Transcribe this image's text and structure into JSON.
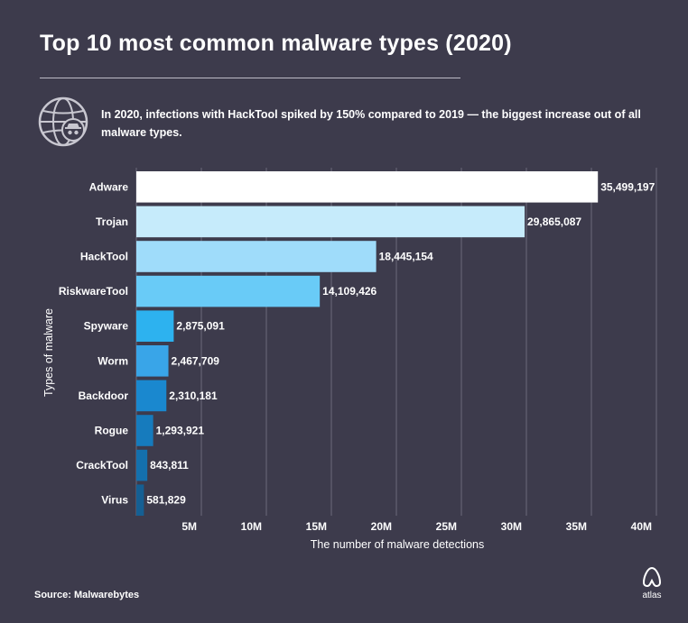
{
  "title": "Top 10 most common malware types (2020)",
  "subtitle": "In 2020, infections with HackTool spiked by 150% compared to 2019 — the biggest increase out of all malware types.",
  "footer": {
    "source": "Source: Malwarebytes",
    "brand": "atlas"
  },
  "icons": {
    "header": "globe-with-spy-icon",
    "brand": "atlas-logo-icon"
  },
  "chart_data": {
    "type": "bar",
    "orientation": "horizontal",
    "categories": [
      "Adware",
      "Trojan",
      "HackTool",
      "RiskwareTool",
      "Spyware",
      "Worm",
      "Backdoor",
      "Rogue",
      "CrackTool",
      "Virus"
    ],
    "values": [
      35499197,
      29865087,
      18445154,
      14109426,
      2875091,
      2467709,
      2310181,
      1293921,
      843811,
      581829
    ],
    "value_labels": [
      "35,499,197",
      "29,865,087",
      "18,445,154",
      "14,109,426",
      "2,875,091",
      "2,467,709",
      "2,310,181",
      "1,293,921",
      "843,811",
      "581,829"
    ],
    "bar_colors": [
      "#ffffff",
      "#c6ebfb",
      "#9fdcfa",
      "#69cbf7",
      "#2db2ef",
      "#39a5e8",
      "#1a88cf",
      "#167bbd",
      "#1470ad",
      "#155f93"
    ],
    "xlabel": "The number of malware detections",
    "ylabel": "Types of malware",
    "xticks": [
      5000000,
      10000000,
      15000000,
      20000000,
      25000000,
      30000000,
      35000000,
      40000000
    ],
    "xtick_labels": [
      "5M",
      "10M",
      "15M",
      "20M",
      "25M",
      "30M",
      "35M",
      "40M"
    ],
    "xlim": [
      0,
      40000000
    ],
    "grid": true,
    "colors": {
      "background": "#3d3b4c",
      "grid": "#6c6a7a",
      "text": "#ffffff"
    }
  }
}
